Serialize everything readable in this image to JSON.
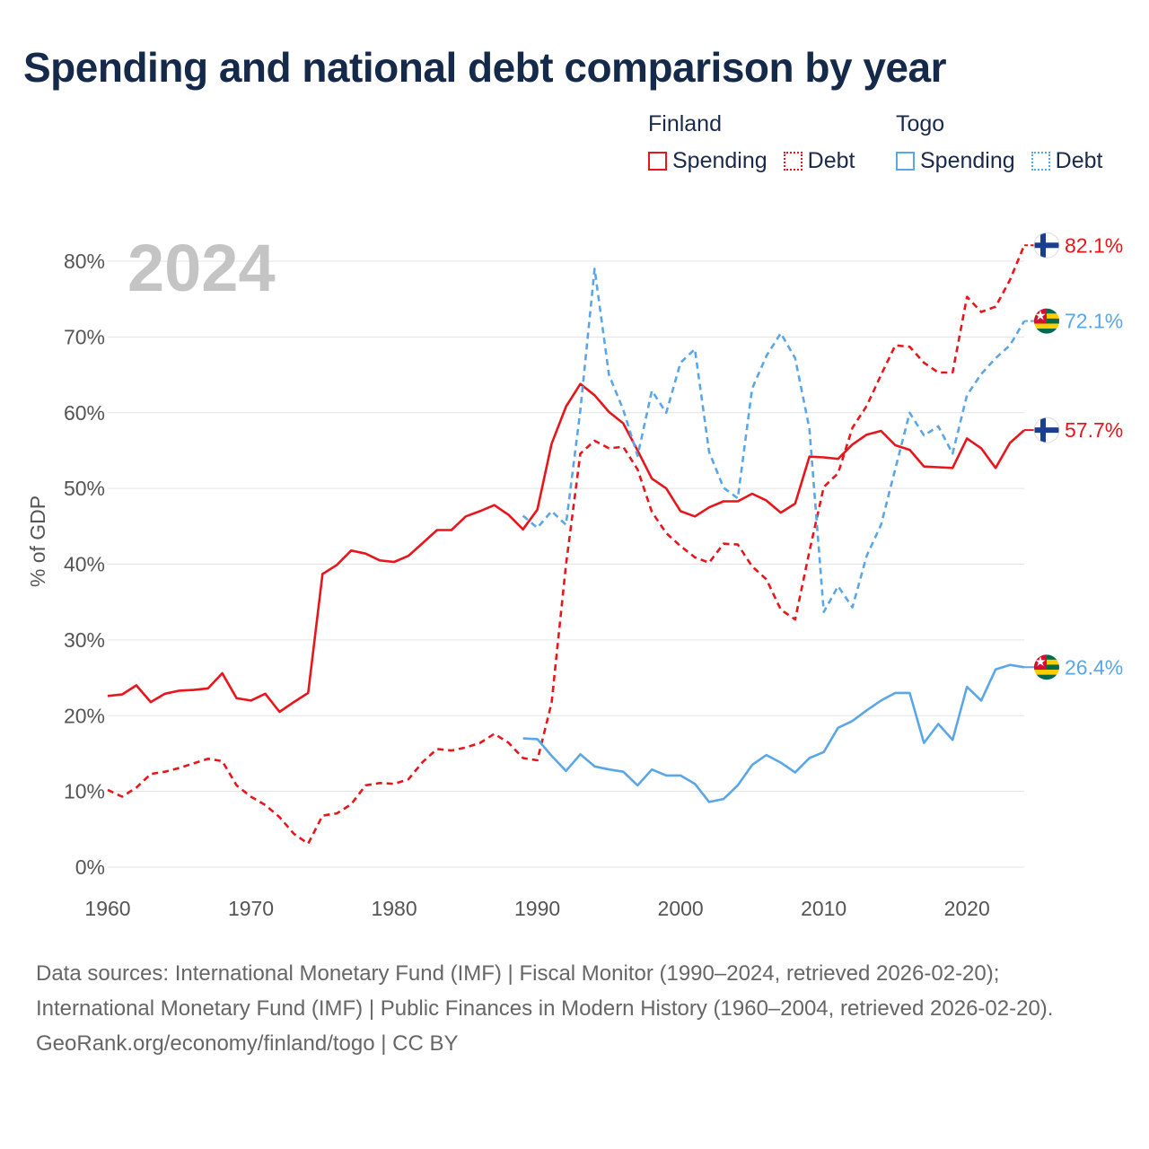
{
  "title": "Spending and national debt comparison by year",
  "legend": {
    "groups": [
      {
        "country": "Finland",
        "spending_label": "Spending",
        "debt_label": "Debt"
      },
      {
        "country": "Togo",
        "spending_label": "Spending",
        "debt_label": "Debt"
      }
    ]
  },
  "colors": {
    "finland": "#e8151b",
    "togo": "#5aa6e6",
    "grid": "#e3e3e3",
    "axis_text": "#555555",
    "year_watermark": "#c4c4c4"
  },
  "footer": {
    "sources": "Data sources: International Monetary Fund (IMF) | Fiscal Monitor (1990–2024, retrieved 2026-02-20); International Monetary Fund (IMF) | Public Finances in Modern History (1960–2004, retrieved 2026-02-20).",
    "credit": "GeoRank.org/economy/finland/togo | CC BY"
  },
  "chart_data": {
    "type": "line",
    "title": "Spending and national debt comparison by year",
    "year_label": "2024",
    "xlabel": "",
    "ylabel": "% of GDP",
    "xlim": [
      1960,
      2024
    ],
    "ylim": [
      0,
      80
    ],
    "x_ticks": [
      "1960",
      "1970",
      "1980",
      "1990",
      "2000",
      "2010",
      "2020"
    ],
    "y_ticks": [
      "0%",
      "10%",
      "20%",
      "30%",
      "40%",
      "50%",
      "60%",
      "70%",
      "80%"
    ],
    "grid": true,
    "legend_position": "top-right",
    "series": [
      {
        "name": "Finland Spending",
        "country": "finland",
        "style": "solid",
        "start_year": 1960,
        "end_label": "57.7%",
        "values": [
          22.6,
          22.8,
          24.0,
          21.8,
          22.9,
          23.3,
          23.4,
          23.6,
          25.6,
          22.3,
          22.0,
          22.9,
          20.5,
          21.8,
          23.0,
          38.7,
          39.9,
          41.8,
          41.4,
          40.5,
          40.3,
          41.1,
          42.8,
          44.5,
          44.5,
          46.3,
          47.0,
          47.8,
          46.5,
          44.6,
          47.2,
          55.9,
          60.8,
          63.8,
          62.3,
          60.1,
          58.6,
          55.0,
          51.3,
          50.0,
          47.0,
          46.3,
          47.5,
          48.3,
          48.3,
          49.3,
          48.4,
          46.8,
          48.0,
          54.2,
          54.1,
          53.9,
          55.8,
          57.1,
          57.6,
          55.7,
          55.1,
          52.9,
          52.8,
          52.7,
          56.6,
          55.3,
          52.7,
          56.0,
          57.7
        ]
      },
      {
        "name": "Finland Debt",
        "country": "finland",
        "style": "dashed",
        "start_year": 1960,
        "end_label": "82.1%",
        "values": [
          10.2,
          9.3,
          10.5,
          12.3,
          12.6,
          13.1,
          13.7,
          14.3,
          14.0,
          10.8,
          9.3,
          8.2,
          6.6,
          4.4,
          3.1,
          6.8,
          7.1,
          8.3,
          10.8,
          11.1,
          11.0,
          11.6,
          13.9,
          15.6,
          15.4,
          15.8,
          16.4,
          17.6,
          16.4,
          14.4,
          14.1,
          21.7,
          39.9,
          54.6,
          56.3,
          55.3,
          55.5,
          52.5,
          46.9,
          44.1,
          42.4,
          40.9,
          40.2,
          42.7,
          42.6,
          39.7,
          38.0,
          34.0,
          32.7,
          41.7,
          50.2,
          52.0,
          58.0,
          60.9,
          65.0,
          68.9,
          68.7,
          66.6,
          65.3,
          65.3,
          75.3,
          73.3,
          74.0,
          77.5,
          82.1
        ]
      },
      {
        "name": "Togo Spending",
        "country": "togo",
        "style": "solid",
        "start_year": 1989,
        "end_label": "26.4%",
        "values": [
          17.0,
          16.9,
          14.7,
          12.7,
          14.9,
          13.3,
          12.9,
          12.6,
          10.8,
          12.9,
          12.1,
          12.1,
          11.0,
          8.6,
          9.0,
          10.8,
          13.5,
          14.8,
          13.8,
          12.5,
          14.4,
          15.2,
          18.4,
          19.3,
          20.7,
          22.0,
          23.0,
          23.0,
          16.4,
          18.9,
          16.8,
          23.8,
          22.0,
          26.1,
          26.7,
          26.4
        ]
      },
      {
        "name": "Togo Debt",
        "country": "togo",
        "style": "dashed",
        "start_year": 1989,
        "end_label": "72.1%",
        "values": [
          46.4,
          44.8,
          47.0,
          45.2,
          60.3,
          79.0,
          65.0,
          60.4,
          54.3,
          62.9,
          60.0,
          66.6,
          68.4,
          54.8,
          50.1,
          48.7,
          63.2,
          67.5,
          70.5,
          67.2,
          57.9,
          33.7,
          37.1,
          34.3,
          41.1,
          45.2,
          52.6,
          60.0,
          57.0,
          58.2,
          54.6,
          62.3,
          65.1,
          67.2,
          68.9,
          72.1
        ]
      }
    ]
  }
}
